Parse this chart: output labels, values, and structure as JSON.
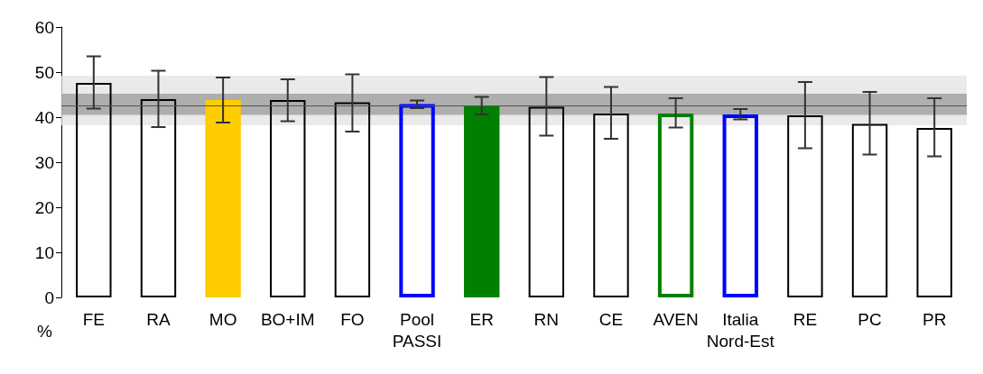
{
  "chart_data": {
    "type": "bar",
    "stacked": true,
    "ylabel": "%",
    "categories": [
      "FE",
      "RA",
      "MO",
      "BO+IM",
      "FO",
      "Pool\nPASSI",
      "ER",
      "RN",
      "CE",
      "AVEN",
      "Italia\nNord-Est",
      "RE",
      "PC",
      "PR"
    ],
    "series": [
      {
        "colors": [
          "#000000",
          "#000000",
          null,
          "#000000",
          "#000000",
          "#0000ff",
          null,
          "#000000",
          "#000000",
          "#008000",
          "#0000ff",
          "#000000",
          "#000000",
          "#000000"
        ],
        "values": [
          47.6,
          44.0,
          null,
          43.8,
          43.3,
          42.9,
          null,
          42.3,
          40.8,
          40.8,
          40.6,
          40.4,
          38.5,
          37.6
        ],
        "errors": [
          [
            41.9,
            53.5
          ],
          [
            37.8,
            50.3
          ],
          null,
          [
            39.1,
            48.4
          ],
          [
            36.8,
            49.5
          ],
          [
            42.0,
            43.7
          ],
          null,
          [
            35.9,
            48.9
          ],
          [
            35.2,
            46.7
          ],
          [
            37.7,
            44.2
          ],
          [
            39.5,
            41.8
          ],
          [
            33.1,
            47.8
          ],
          [
            31.7,
            45.6
          ],
          [
            31.3,
            44.2
          ]
        ]
      },
      {
        "colors": [
          null,
          null,
          "#ffcc00",
          null,
          null,
          null,
          "#008000",
          null,
          null,
          null,
          null,
          null,
          null,
          null
        ],
        "values": [
          null,
          null,
          43.8,
          null,
          null,
          null,
          42.5,
          null,
          null,
          null,
          null,
          null,
          null,
          null
        ],
        "errors": [
          null,
          null,
          [
            38.8,
            48.8
          ],
          null,
          null,
          null,
          [
            40.6,
            44.5
          ],
          null,
          null,
          null,
          null,
          null,
          null,
          null
        ]
      }
    ],
    "ylim": [
      0,
      60
    ],
    "yticks": [
      0,
      10,
      20,
      30,
      40,
      50,
      60
    ],
    "grid": false,
    "bands": [
      {
        "axis": "y",
        "from": 38.2,
        "to": 49.2,
        "color": "#e3e3e3"
      },
      {
        "axis": "y",
        "from": 40.5,
        "to": 45.2,
        "color": "#9a9a9a"
      }
    ],
    "ref_lines": [
      {
        "axis": "y",
        "value": 42.6,
        "color": "#555555"
      }
    ]
  }
}
